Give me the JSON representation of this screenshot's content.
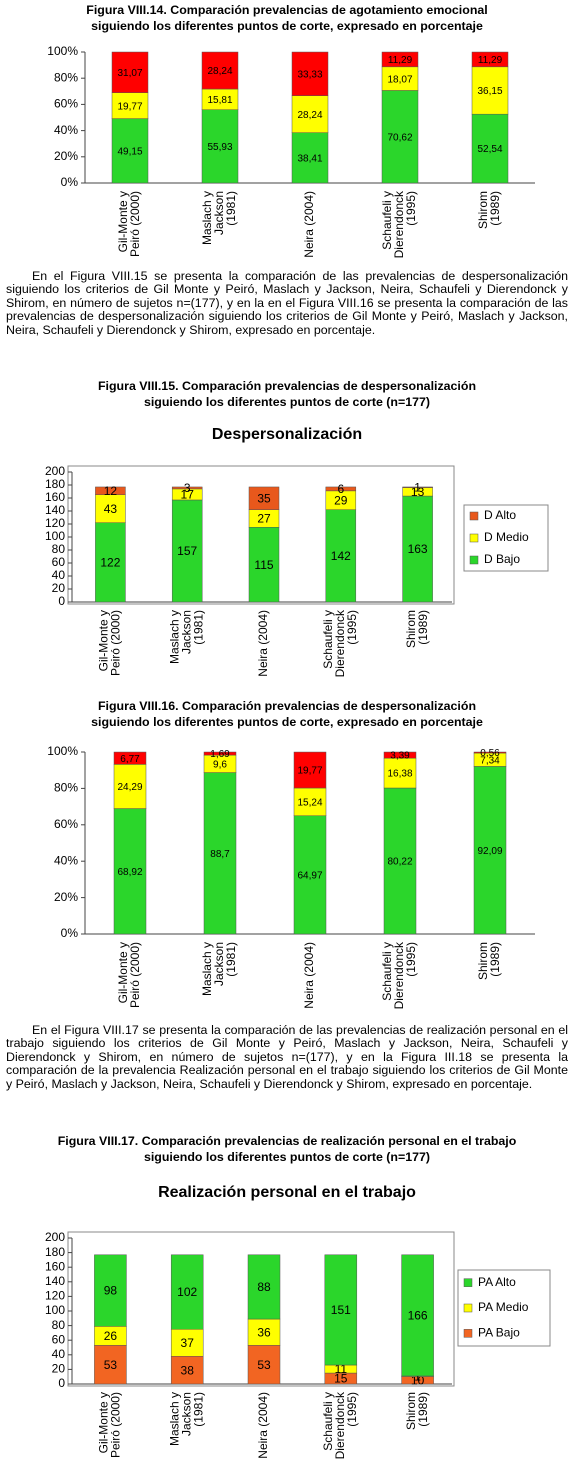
{
  "paragraphs": [
    "En el Figura VIII.15 se presenta la comparación de las prevalencias de despersonalización siguiendo los criterios de Gil Monte y Peiró, Maslach y Jackson, Neira, Schaufeli y Dierendonck y Shirom, en número de sujetos n=(177), y en la en el Figura VIII.16 se presenta la comparación de las prevalencias de despersonalización siguiendo los criterios de Gil Monte y Peiró, Maslach y Jackson, Neira, Schaufeli y Dierendonck y Shirom, expresado en porcentaje.",
    "En el Figura VIII.17 se presenta la comparación de las prevalencias de realización personal en el trabajo siguiendo los criterios de Gil Monte y Peiró, Maslach y Jackson, Neira, Schaufeli y Dierendonck y Shirom, en número de sujetos n=(177), y en la Figura III.18 se presenta la comparación de la prevalencia Realización personal en el trabajo siguiendo los criterios de Gil Monte y Peiró, Maslach y Jackson, Neira, Schaufeli y Dierendonck y Shirom, expresado en porcentaje."
  ],
  "chart_data": [
    {
      "type": "stacked_bar",
      "caption": [
        "Figura VIII.14. Comparación prevalencias de agotamiento emocional",
        "siguiendo los diferentes puntos de corte, expresado en porcentaje"
      ],
      "categories": [
        [
          "Gil-Monte y",
          "Peiró (2000)"
        ],
        [
          "Maslach y",
          "Jackson",
          "(1981)"
        ],
        [
          "Neira (2004)"
        ],
        [
          "Schaufeli y",
          "Dierendonck",
          "(1995)"
        ],
        [
          "Shirom",
          "(1989)"
        ]
      ],
      "series": [
        {
          "color": "#2bd62b",
          "values": [
            49.15,
            55.93,
            38.41,
            70.62,
            52.54
          ],
          "value_labels": [
            "49,15",
            "55,93",
            "38,41",
            "70,62",
            "52,54"
          ]
        },
        {
          "color": "#ffff00",
          "values": [
            19.77,
            15.81,
            28.24,
            18.07,
            36.15
          ],
          "value_labels": [
            "19,77",
            "15,81",
            "28,24",
            "18,07",
            "36,15"
          ]
        },
        {
          "color": "#ff0000",
          "values": [
            31.07,
            28.24,
            33.33,
            11.29,
            11.29
          ],
          "value_labels": [
            "31,07",
            "28,24",
            "33,33",
            "11,29",
            "11,29"
          ]
        }
      ],
      "ylim": [
        0,
        100
      ],
      "yticks": [
        {
          "value": 0,
          "label": "0%"
        },
        {
          "value": 20,
          "label": "20%"
        },
        {
          "value": 40,
          "label": "40%"
        },
        {
          "value": 60,
          "label": "60%"
        },
        {
          "value": 80,
          "label": "80%"
        },
        {
          "value": 100,
          "label": "100%"
        }
      ]
    },
    {
      "type": "stacked_bar",
      "caption": [
        "Figura VIII.15. Comparación prevalencias de despersonalización",
        "siguiendo los diferentes puntos de corte (n=177)"
      ],
      "title": "Despersonalización",
      "categories": [
        [
          "Gil-Monte y",
          "Peiró (2000)"
        ],
        [
          "Maslach y",
          "Jackson",
          "(1981)"
        ],
        [
          "Neira (2004)"
        ],
        [
          "Schaufeli y",
          "Dierendonck",
          "(1995)"
        ],
        [
          "Shirom",
          "(1989)"
        ]
      ],
      "series": [
        {
          "name": "D Bajo",
          "color": "#2bd62b",
          "values": [
            122,
            157,
            115,
            142,
            163
          ]
        },
        {
          "name": "D Medio",
          "color": "#ffff00",
          "values": [
            43,
            17,
            27,
            29,
            13
          ]
        },
        {
          "name": "D Alto",
          "color": "#e8581c",
          "values": [
            12,
            3,
            35,
            6,
            1
          ]
        }
      ],
      "ylim": [
        0,
        200
      ],
      "yticks": [
        0,
        20,
        40,
        60,
        80,
        100,
        120,
        140,
        160,
        180,
        200
      ],
      "legend": "right"
    },
    {
      "type": "stacked_bar",
      "caption": [
        "Figura VIII.16. Comparación prevalencias de despersonalización",
        "siguiendo los diferentes puntos de corte, expresado en porcentaje"
      ],
      "categories": [
        [
          "Gil-Monte y",
          "Peiró (2000)"
        ],
        [
          "Maslach y",
          "Jackson",
          "(1981)"
        ],
        [
          "Neira (2004)"
        ],
        [
          "Schaufeli y",
          "Dierendonck",
          "(1995)"
        ],
        [
          "Shirom",
          "(1989)"
        ]
      ],
      "series": [
        {
          "color": "#2bd62b",
          "values": [
            68.92,
            88.7,
            64.97,
            80.22,
            92.09
          ],
          "value_labels": [
            "68,92",
            "88,7",
            "64,97",
            "80,22",
            "92,09"
          ]
        },
        {
          "color": "#ffff00",
          "values": [
            24.29,
            9.6,
            15.24,
            16.38,
            7.34
          ],
          "value_labels": [
            "24,29",
            "9,6",
            "15,24",
            "16,38",
            "7,34"
          ]
        },
        {
          "color": "#ff0000",
          "values": [
            6.77,
            1.69,
            19.77,
            3.39,
            0.56
          ],
          "value_labels": [
            "6,77",
            "1,69",
            "19,77",
            "3,39",
            "0,56"
          ]
        }
      ],
      "ylim": [
        0,
        100
      ],
      "yticks": [
        {
          "value": 0,
          "label": "0%"
        },
        {
          "value": 20,
          "label": "20%"
        },
        {
          "value": 40,
          "label": "40%"
        },
        {
          "value": 60,
          "label": "60%"
        },
        {
          "value": 80,
          "label": "80%"
        },
        {
          "value": 100,
          "label": "100%"
        }
      ]
    },
    {
      "type": "stacked_bar",
      "caption": [
        "Figura VIII.17. Comparación prevalencias de realización personal en el trabajo",
        "siguiendo los diferentes puntos de corte (n=177)"
      ],
      "title": "Realización personal en el trabajo",
      "categories": [
        [
          "Gil-Monte y",
          "Peiró (2000)"
        ],
        [
          "Maslach y",
          "Jackson",
          "(1981)"
        ],
        [
          "Neira (2004)"
        ],
        [
          "Schaufeli y",
          "Dierendonck",
          "(1995)"
        ],
        [
          "Shirom",
          "(1989)"
        ]
      ],
      "series": [
        {
          "name": "PA Bajo",
          "color": "#f26522",
          "values": [
            53,
            38,
            53,
            15,
            10
          ]
        },
        {
          "name": "PA Medio",
          "color": "#ffff00",
          "values": [
            26,
            37,
            36,
            11,
            1
          ]
        },
        {
          "name": "PA Alto",
          "color": "#2bd62b",
          "values": [
            98,
            102,
            88,
            151,
            166
          ]
        }
      ],
      "ylim": [
        0,
        200
      ],
      "yticks": [
        0,
        20,
        40,
        60,
        80,
        100,
        120,
        140,
        160,
        180,
        200
      ],
      "legend": "right"
    }
  ]
}
